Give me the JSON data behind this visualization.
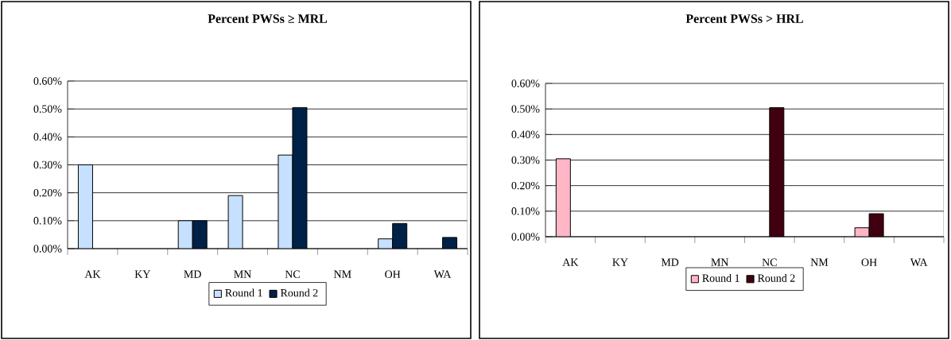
{
  "chart_data": [
    {
      "type": "bar",
      "title": "Percent PWSs ≥ MRL",
      "categories": [
        "AK",
        "KY",
        "MD",
        "MN",
        "NC",
        "NM",
        "OH",
        "WA"
      ],
      "series": [
        {
          "name": "Round 1",
          "color": "#c6e0ff",
          "values": [
            0.3,
            null,
            0.1,
            0.19,
            0.335,
            null,
            0.035,
            null
          ]
        },
        {
          "name": "Round 2",
          "color": "#002147",
          "values": [
            null,
            null,
            0.1,
            null,
            0.505,
            null,
            0.09,
            0.04
          ]
        }
      ],
      "ylim": [
        0,
        0.6
      ],
      "yticks": [
        {
          "value": 0,
          "label": "0.00%"
        },
        {
          "value": 0.1,
          "label": "0.10%"
        },
        {
          "value": 0.2,
          "label": "0.20%"
        },
        {
          "value": 0.3,
          "label": "0.30%"
        },
        {
          "value": 0.4,
          "label": "0.40%"
        },
        {
          "value": 0.5,
          "label": "0.50%"
        },
        {
          "value": 0.6,
          "label": "0.60%"
        }
      ],
      "grid": "y",
      "legend": "bottom"
    },
    {
      "type": "bar",
      "title": "Percent PWSs > HRL",
      "categories": [
        "AK",
        "KY",
        "MD",
        "MN",
        "NC",
        "NM",
        "OH",
        "WA"
      ],
      "series": [
        {
          "name": "Round 1",
          "color": "#ffb6c6",
          "values": [
            0.305,
            null,
            null,
            null,
            null,
            null,
            0.035,
            null
          ]
        },
        {
          "name": "Round 2",
          "color": "#40000f",
          "values": [
            null,
            null,
            null,
            null,
            0.505,
            null,
            0.09,
            null
          ]
        }
      ],
      "ylim": [
        0,
        0.6
      ],
      "yticks": [
        {
          "value": 0,
          "label": "0.00%"
        },
        {
          "value": 0.1,
          "label": "0.10%"
        },
        {
          "value": 0.2,
          "label": "0.20%"
        },
        {
          "value": 0.3,
          "label": "0.30%"
        },
        {
          "value": 0.4,
          "label": "0.40%"
        },
        {
          "value": 0.5,
          "label": "0.50%"
        },
        {
          "value": 0.6,
          "label": "0.60%"
        }
      ],
      "grid": "y",
      "legend": "bottom"
    }
  ]
}
